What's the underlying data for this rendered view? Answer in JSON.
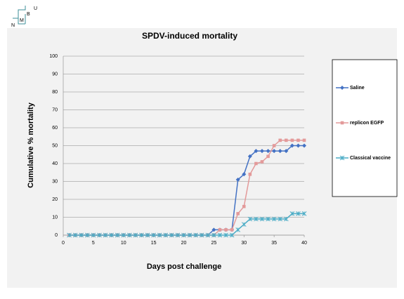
{
  "logo": {
    "letters": [
      "N",
      "M",
      "B",
      "U"
    ]
  },
  "chart_data": {
    "type": "line",
    "title": "SPDV-induced mortality",
    "xlabel": "Days post challenge",
    "ylabel": "Cumulative % mortality",
    "x": [
      1,
      2,
      3,
      4,
      5,
      6,
      7,
      8,
      9,
      10,
      11,
      12,
      13,
      14,
      15,
      16,
      17,
      18,
      19,
      20,
      21,
      22,
      23,
      24,
      25,
      26,
      27,
      28,
      29,
      30,
      31,
      32,
      33,
      34,
      35,
      36,
      37,
      38,
      39,
      40
    ],
    "series": [
      {
        "name": "Saline",
        "color": "#4472c4",
        "marker": "diamond",
        "values": [
          0,
          0,
          0,
          0,
          0,
          0,
          0,
          0,
          0,
          0,
          0,
          0,
          0,
          0,
          0,
          0,
          0,
          0,
          0,
          0,
          0,
          0,
          0,
          0,
          3,
          3,
          3,
          3,
          31,
          34,
          44,
          47,
          47,
          47,
          47,
          47,
          47,
          50,
          50,
          50
        ]
      },
      {
        "name": "replicon EGFP",
        "color": "#e39a9a",
        "marker": "square",
        "values": [
          0,
          0,
          0,
          0,
          0,
          0,
          0,
          0,
          0,
          0,
          0,
          0,
          0,
          0,
          0,
          0,
          0,
          0,
          0,
          0,
          0,
          0,
          0,
          0,
          0,
          3,
          3,
          3,
          12,
          16,
          34,
          40,
          41,
          44,
          50,
          53,
          53,
          53,
          53,
          53
        ]
      },
      {
        "name": "Classical vaccine",
        "color": "#4bacc6",
        "marker": "asterisk",
        "values": [
          0,
          0,
          0,
          0,
          0,
          0,
          0,
          0,
          0,
          0,
          0,
          0,
          0,
          0,
          0,
          0,
          0,
          0,
          0,
          0,
          0,
          0,
          0,
          0,
          0,
          0,
          0,
          0,
          3,
          6,
          9,
          9,
          9,
          9,
          9,
          9,
          9,
          12,
          12,
          12
        ]
      }
    ],
    "xlim": [
      0,
      40
    ],
    "xticks": [
      0,
      5,
      10,
      15,
      20,
      25,
      30,
      35,
      40
    ],
    "ylim": [
      0,
      100
    ],
    "yticks": [
      0,
      10,
      20,
      30,
      40,
      50,
      60,
      70,
      80,
      90,
      100
    ],
    "grid": true,
    "legend": "right"
  }
}
